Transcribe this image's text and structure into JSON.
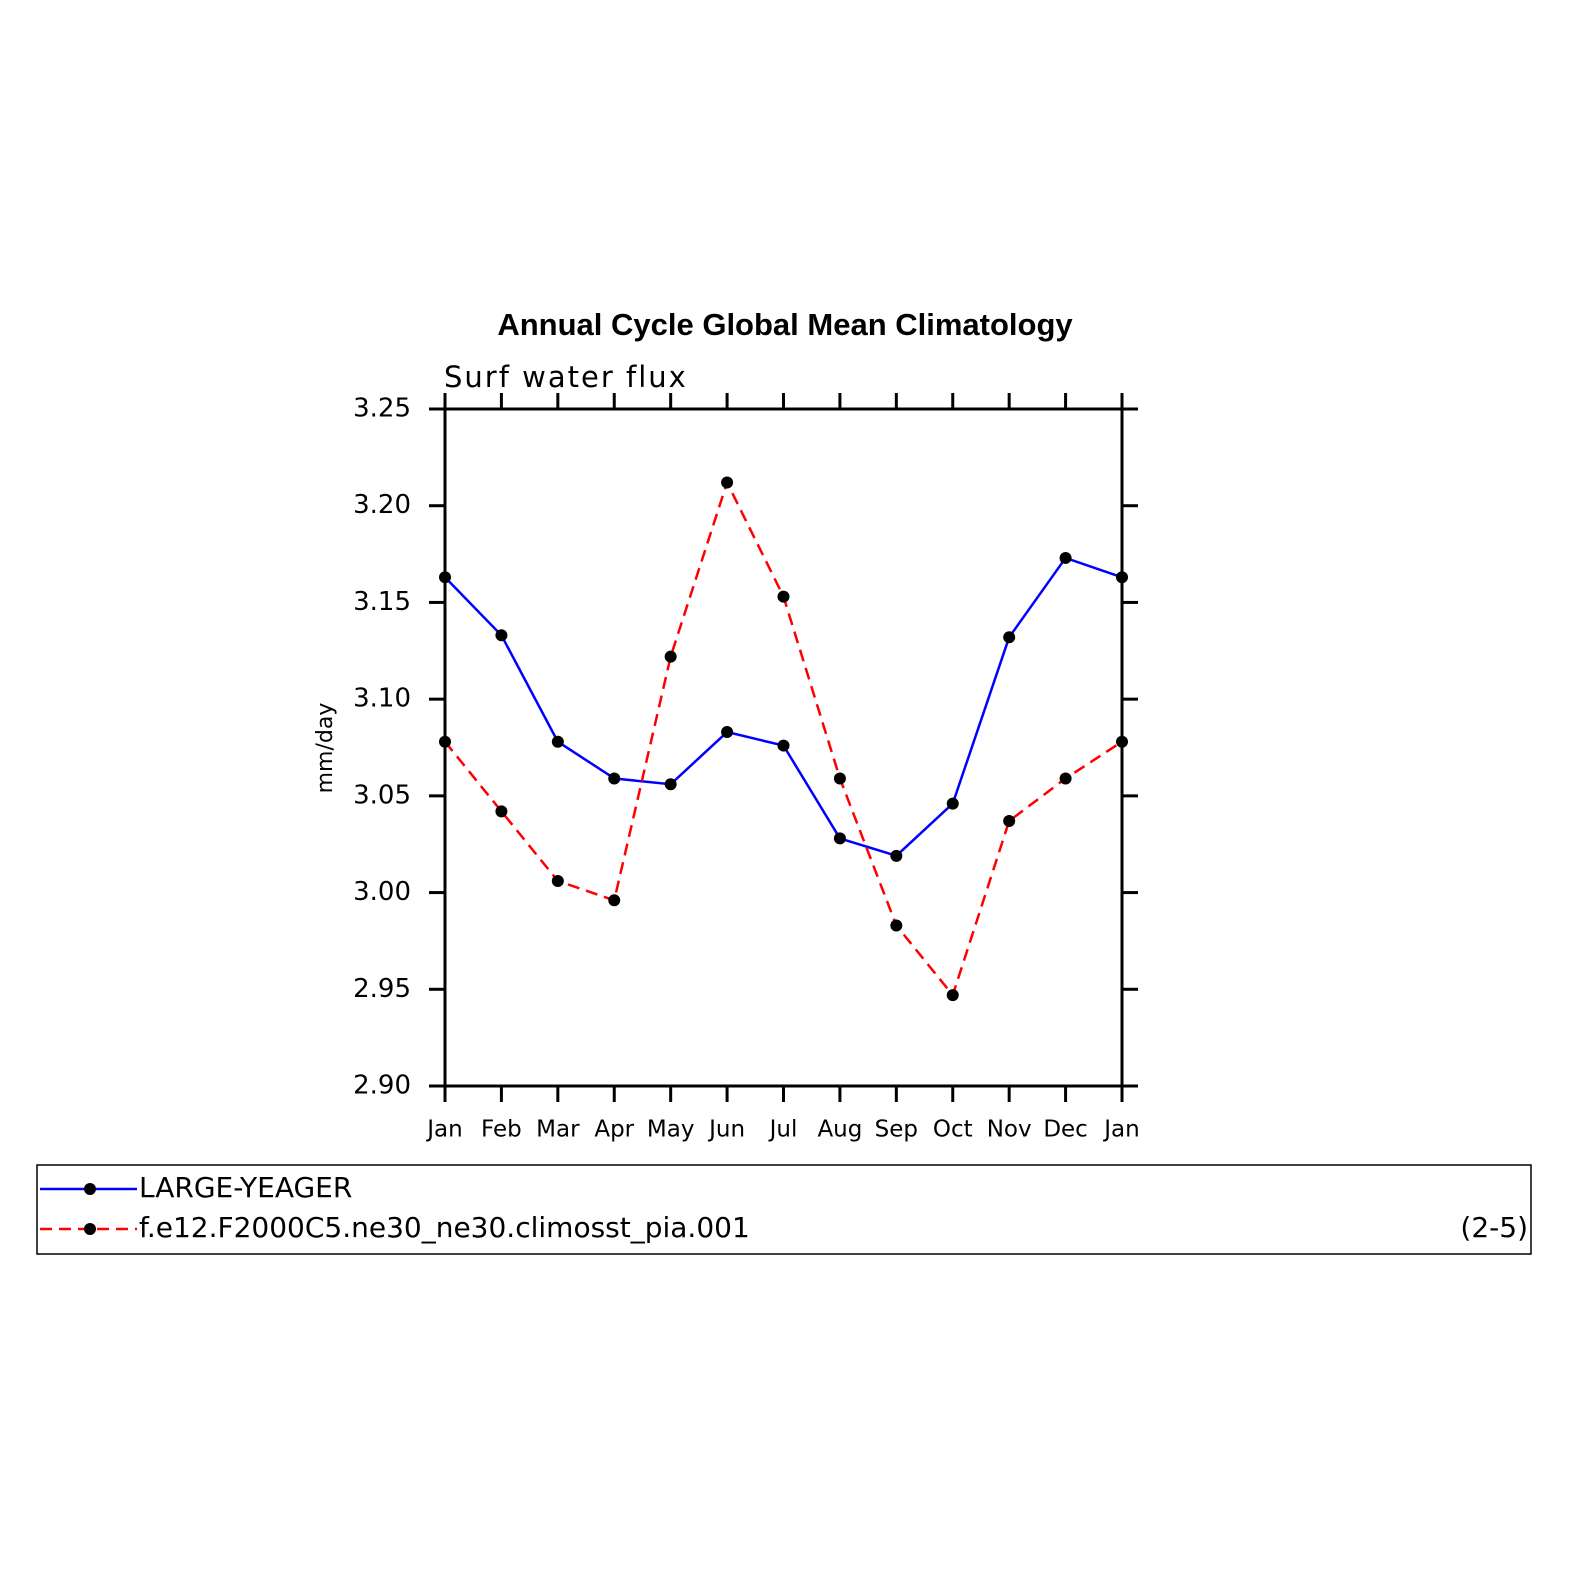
{
  "chart_data": {
    "type": "line",
    "title": "Annual Cycle Global Mean Climatology",
    "subtitle": "Surf water flux",
    "y_label": "mm/day",
    "note": "(2-5)",
    "categories": [
      "Jan",
      "Feb",
      "Mar",
      "Apr",
      "May",
      "Jun",
      "Jul",
      "Aug",
      "Sep",
      "Oct",
      "Nov",
      "Dec",
      "Jan"
    ],
    "series": [
      {
        "name": "LARGE-YEAGER",
        "color": "#0000ff",
        "linestyle": "solid",
        "values": [
          3.163,
          3.133,
          3.078,
          3.059,
          3.056,
          3.083,
          3.076,
          3.028,
          3.019,
          3.046,
          3.132,
          3.173,
          3.163
        ]
      },
      {
        "name": "f.e12.F2000C5.ne30_ne30.climosst_pia.001",
        "color": "#ff0000",
        "linestyle": "dashed",
        "values": [
          3.078,
          3.042,
          3.006,
          2.996,
          3.122,
          3.212,
          3.153,
          3.059,
          2.983,
          2.947,
          3.037,
          3.059,
          3.078
        ]
      }
    ],
    "ylim": [
      2.9,
      3.25
    ],
    "yticks": [
      {
        "value": 2.9,
        "label": "2.90"
      },
      {
        "value": 2.95,
        "label": "2.95"
      },
      {
        "value": 3,
        "label": "3.00"
      },
      {
        "value": 3.05,
        "label": "3.05"
      },
      {
        "value": 3.1,
        "label": "3.10"
      },
      {
        "value": 3.15,
        "label": "3.15"
      },
      {
        "value": 3.2,
        "label": "3.20"
      },
      {
        "value": 3.25,
        "label": "3.25"
      }
    ],
    "grid": false
  }
}
